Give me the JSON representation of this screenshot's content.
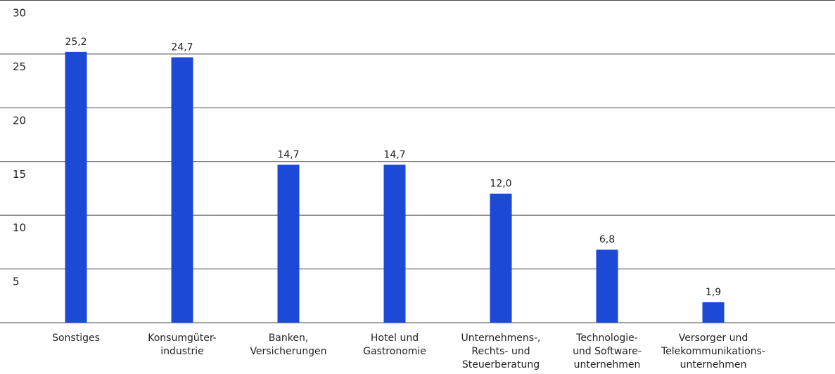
{
  "chart_data": {
    "type": "bar",
    "categories": [
      "Sonstiges",
      "Konsumgüter-\nindustrie",
      "Banken,\nVersicherungen",
      "Hotel und\nGastronomie",
      "Unternehmens-,\nRechts- und\nSteuerberatung",
      "Technologie-\nund Software-\nunternehmen",
      "Versorger und\nTelekommunikations-\nunternehmen"
    ],
    "values": [
      25.2,
      24.7,
      14.7,
      14.7,
      12.0,
      6.8,
      1.9
    ],
    "value_labels": [
      "25,2",
      "24,7",
      "14,7",
      "14,7",
      "12,0",
      "6,8",
      "1,9"
    ],
    "color": "#1c4ad6",
    "ylim": [
      0,
      30
    ],
    "yticks": [
      5,
      10,
      15,
      20,
      25,
      30
    ],
    "grid": true
  }
}
